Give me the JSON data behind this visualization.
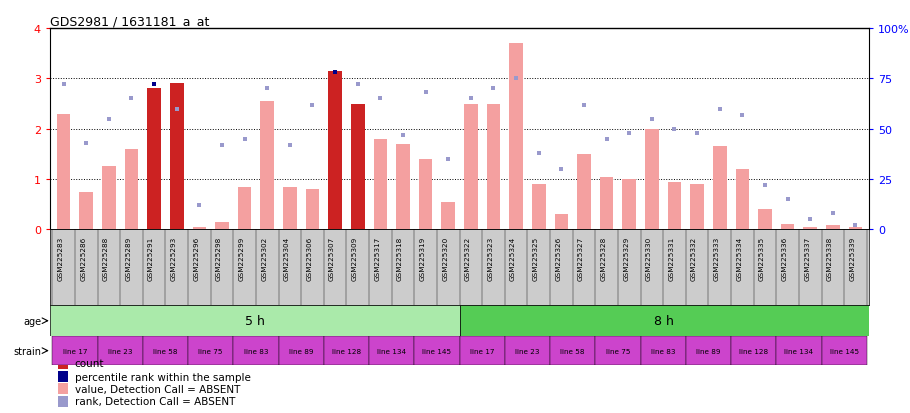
{
  "title": "GDS2981 / 1631181_a_at",
  "samples": [
    "GSM225283",
    "GSM225286",
    "GSM225288",
    "GSM225289",
    "GSM225291",
    "GSM225293",
    "GSM225296",
    "GSM225298",
    "GSM225299",
    "GSM225302",
    "GSM225304",
    "GSM225306",
    "GSM225307",
    "GSM225309",
    "GSM225317",
    "GSM225318",
    "GSM225319",
    "GSM225320",
    "GSM225322",
    "GSM225323",
    "GSM225324",
    "GSM225325",
    "GSM225326",
    "GSM225327",
    "GSM225328",
    "GSM225329",
    "GSM225330",
    "GSM225331",
    "GSM225332",
    "GSM225333",
    "GSM225334",
    "GSM225335",
    "GSM225336",
    "GSM225337",
    "GSM225338",
    "GSM225339"
  ],
  "bar_values": [
    2.3,
    0.75,
    1.25,
    1.6,
    2.8,
    2.9,
    0.05,
    0.15,
    0.85,
    2.55,
    0.85,
    0.8,
    3.15,
    2.5,
    1.8,
    1.7,
    1.4,
    0.55,
    2.5,
    2.5,
    3.7,
    0.9,
    0.3,
    1.5,
    1.05,
    1.0,
    2.0,
    0.95,
    0.9,
    1.65,
    1.2,
    0.4,
    0.1,
    0.05,
    0.08,
    0.05
  ],
  "bar_colors_dark": [
    false,
    false,
    false,
    false,
    true,
    true,
    false,
    false,
    false,
    false,
    false,
    false,
    true,
    true,
    false,
    false,
    false,
    false,
    false,
    false,
    false,
    false,
    false,
    false,
    false,
    false,
    false,
    false,
    false,
    false,
    false,
    false,
    false,
    false,
    false,
    false
  ],
  "rank_values": [
    0.72,
    0.43,
    0.55,
    0.65,
    0.72,
    0.6,
    0.12,
    0.42,
    0.45,
    0.7,
    0.42,
    0.62,
    0.78,
    0.72,
    0.65,
    0.47,
    0.68,
    0.35,
    0.65,
    0.7,
    0.75,
    0.38,
    0.3,
    0.62,
    0.45,
    0.48,
    0.55,
    0.5,
    0.48,
    0.6,
    0.57,
    0.22,
    0.15,
    0.05,
    0.08,
    0.02
  ],
  "rank_is_dark": [
    false,
    false,
    false,
    false,
    true,
    false,
    false,
    false,
    false,
    false,
    false,
    false,
    true,
    false,
    false,
    false,
    false,
    false,
    false,
    false,
    false,
    false,
    false,
    false,
    false,
    false,
    false,
    false,
    false,
    false,
    false,
    false,
    false,
    false,
    false,
    false
  ],
  "strain_groups": [
    {
      "label": "line 17",
      "start": 0,
      "end": 2
    },
    {
      "label": "line 23",
      "start": 2,
      "end": 4
    },
    {
      "label": "line 58",
      "start": 4,
      "end": 6
    },
    {
      "label": "line 75",
      "start": 6,
      "end": 8
    },
    {
      "label": "line 83",
      "start": 8,
      "end": 10
    },
    {
      "label": "line 89",
      "start": 10,
      "end": 12
    },
    {
      "label": "line 128",
      "start": 12,
      "end": 14
    },
    {
      "label": "line 134",
      "start": 14,
      "end": 16
    },
    {
      "label": "line 145",
      "start": 16,
      "end": 18
    },
    {
      "label": "line 17",
      "start": 18,
      "end": 20
    },
    {
      "label": "line 23",
      "start": 20,
      "end": 22
    },
    {
      "label": "line 58",
      "start": 22,
      "end": 24
    },
    {
      "label": "line 75",
      "start": 24,
      "end": 26
    },
    {
      "label": "line 83",
      "start": 26,
      "end": 28
    },
    {
      "label": "line 89",
      "start": 28,
      "end": 30
    },
    {
      "label": "line 128",
      "start": 30,
      "end": 32
    },
    {
      "label": "line 134",
      "start": 32,
      "end": 34
    },
    {
      "label": "line 145",
      "start": 34,
      "end": 36
    }
  ],
  "ylim_left": [
    0,
    4
  ],
  "ylim_right": [
    0,
    100
  ],
  "yticks_left": [
    0,
    1,
    2,
    3,
    4
  ],
  "yticks_right": [
    0,
    25,
    50,
    75,
    100
  ],
  "bar_color_present": "#cc2222",
  "bar_color_absent": "#f4a0a0",
  "rank_color_present": "#00008B",
  "rank_color_absent": "#9999cc",
  "bg_color": "#ffffff",
  "age_5h_color": "#aaeaaa",
  "age_8h_color": "#55cc55",
  "strain_color": "#cc44cc",
  "xticklabel_bg": "#cccccc"
}
